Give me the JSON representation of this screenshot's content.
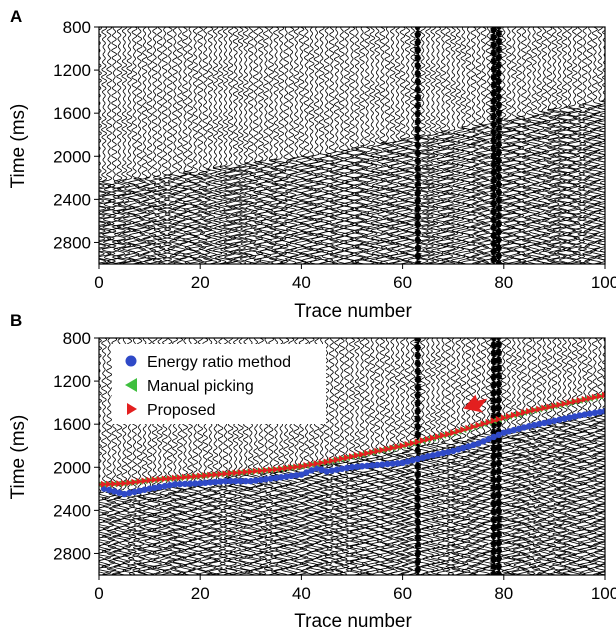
{
  "figure": {
    "colors": {
      "trace": "#000000",
      "energy_ratio": "#2f49c7",
      "manual": "#3fbf3f",
      "proposed": "#e31f1f",
      "arrow": "#e31f1f"
    }
  },
  "chart_data": [
    {
      "panel_label": "A",
      "type": "seismic_wiggle",
      "xlabel": "Trace number",
      "ylabel": "Time (ms)",
      "xlim": [
        0,
        100
      ],
      "ylim": [
        800,
        3000
      ],
      "y_inverted": true,
      "x_ticks": [
        0,
        20,
        40,
        60,
        80,
        100
      ],
      "y_ticks": [
        800,
        1200,
        1600,
        2000,
        2400,
        2800
      ],
      "traces": 100,
      "first_arrival_trend": {
        "x": [
          0,
          10,
          20,
          30,
          40,
          50,
          60,
          70,
          80,
          90,
          100
        ],
        "y": [
          2280,
          2230,
          2170,
          2100,
          2040,
          1960,
          1880,
          1790,
          1700,
          1600,
          1520
        ]
      },
      "noisy_traces": [
        63,
        78,
        79
      ]
    },
    {
      "panel_label": "B",
      "type": "seismic_wiggle_with_picks",
      "xlabel": "Trace number",
      "ylabel": "Time (ms)",
      "xlim": [
        0,
        100
      ],
      "ylim": [
        800,
        3000
      ],
      "y_inverted": true,
      "x_ticks": [
        0,
        20,
        40,
        60,
        80,
        100
      ],
      "y_ticks": [
        800,
        1200,
        1600,
        2000,
        2400,
        2800
      ],
      "legend": {
        "position": "top-left",
        "entries": [
          "Energy ratio method",
          "Manual picking",
          "Proposed"
        ]
      },
      "series": [
        {
          "name": "Energy ratio method",
          "marker": "circle",
          "x": [
            1,
            5,
            10,
            15,
            20,
            25,
            30,
            35,
            40,
            43,
            45,
            50,
            55,
            60,
            65,
            70,
            75,
            80,
            85,
            90,
            95,
            100
          ],
          "y": [
            2180,
            2230,
            2180,
            2140,
            2130,
            2110,
            2110,
            2080,
            2050,
            1990,
            2020,
            1980,
            1960,
            1940,
            1880,
            1830,
            1760,
            1660,
            1600,
            1550,
            1500,
            1460
          ]
        },
        {
          "name": "Manual picking",
          "marker": "triangle-left",
          "x": [
            0,
            5,
            10,
            15,
            20,
            25,
            30,
            35,
            40,
            45,
            50,
            55,
            60,
            65,
            70,
            75,
            80,
            85,
            90,
            95,
            100
          ],
          "y": [
            2160,
            2150,
            2120,
            2100,
            2080,
            2060,
            2040,
            2020,
            1990,
            1950,
            1900,
            1850,
            1800,
            1740,
            1680,
            1610,
            1540,
            1480,
            1430,
            1380,
            1330
          ]
        },
        {
          "name": "Proposed",
          "marker": "triangle-right",
          "x": [
            0,
            5,
            10,
            15,
            20,
            25,
            30,
            35,
            40,
            45,
            50,
            55,
            60,
            65,
            70,
            75,
            80,
            85,
            90,
            95,
            100
          ],
          "y": [
            2160,
            2150,
            2120,
            2100,
            2080,
            2060,
            2040,
            2020,
            1990,
            1950,
            1900,
            1850,
            1800,
            1740,
            1680,
            1610,
            1540,
            1480,
            1430,
            1380,
            1330
          ]
        }
      ],
      "annotation_arrow": {
        "x": 74,
        "y": 1400,
        "direction": "down-left"
      },
      "noisy_traces": [
        63,
        78,
        79
      ]
    }
  ]
}
